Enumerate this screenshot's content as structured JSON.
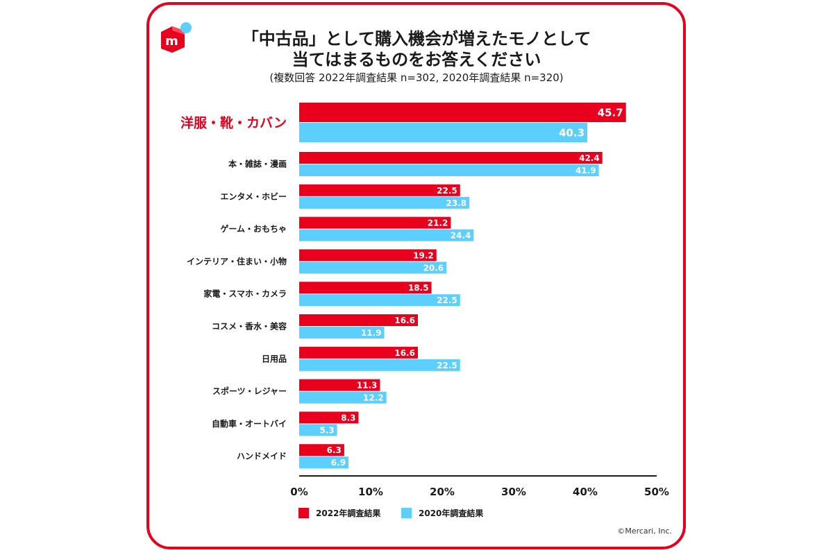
{
  "header": {
    "title_line1": "「中古品」として購入機会が増えたモノとして",
    "title_line2": "当てはまるものをお答えください",
    "subtitle": "(複数回答 2022年調査結果 n=302, 2020年調査結果 n=320)"
  },
  "colors": {
    "red": "#e8001c",
    "blue": "#5ccfff",
    "highlight_label": "#e8001c"
  },
  "logo": {
    "icon": "mercari-logo",
    "letter": "m"
  },
  "chart_data": {
    "type": "bar",
    "orientation": "horizontal",
    "title": "「中古品」として購入機会が増えたモノとして当てはまるものをお答えください",
    "subtitle": "(複数回答 2022年調査結果 n=302, 2020年調査結果 n=320)",
    "categories": [
      "洋服・靴・カバン",
      "本・雑誌・漫画",
      "エンタメ・ホビー",
      "ゲーム・おもちゃ",
      "インテリア・住まい・小物",
      "家電・スマホ・カメラ",
      "コスメ・香水・美容",
      "日用品",
      "スポーツ・レジャー",
      "自動車・オートバイ",
      "ハンドメイド"
    ],
    "highlight_category": "洋服・靴・カバン",
    "series": [
      {
        "name": "2022年調査結果",
        "color": "#e8001c",
        "values": [
          45.7,
          42.4,
          22.5,
          21.2,
          19.2,
          18.5,
          16.6,
          16.6,
          11.3,
          8.3,
          6.3
        ]
      },
      {
        "name": "2020年調査結果",
        "color": "#5ccfff",
        "values": [
          40.3,
          41.9,
          23.8,
          24.4,
          20.6,
          22.5,
          11.9,
          22.5,
          12.2,
          5.3,
          6.9
        ]
      }
    ],
    "x_ticks": [
      "0%",
      "10%",
      "20%",
      "30%",
      "40%",
      "50%"
    ],
    "xlim": [
      0,
      50
    ],
    "data_labels": true,
    "grid": false,
    "legend_position": "bottom-center"
  },
  "legend": {
    "items": [
      "2022年調査結果",
      "2020年調査結果"
    ]
  },
  "footer": {
    "copyright": "©Mercari, Inc."
  }
}
